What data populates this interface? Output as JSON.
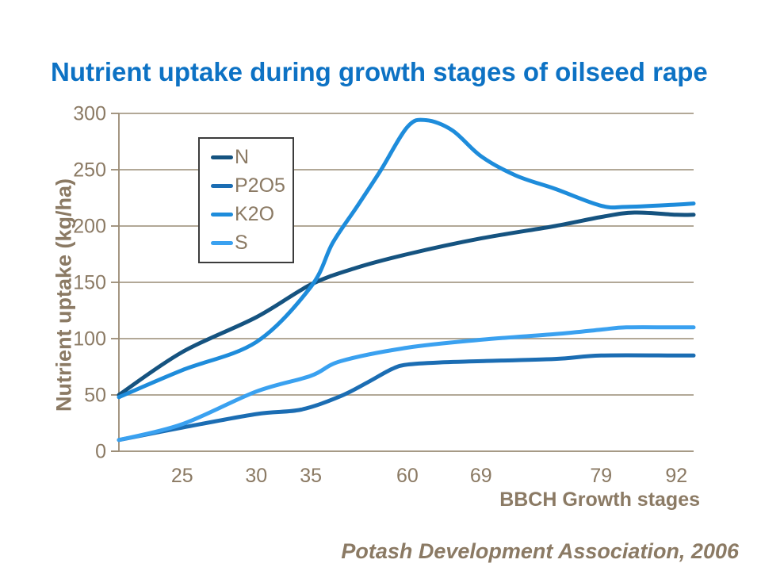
{
  "title": "Nutrient uptake during growth stages of oilseed rape",
  "footer": "Potash Development Association, 2006",
  "colors": {
    "title_blue": "#0D72C4",
    "axis_text": "#8B7A64",
    "grid": "#A79B88",
    "axis": "#9A8B74",
    "legend_border": "#3C3C3C",
    "background": "#FFFFFF"
  },
  "chart_data": {
    "type": "line",
    "title": "Nutrient uptake during growth stages of oilseed rape",
    "xlabel": "BBCH Growth stages",
    "ylabel": "Nutrient uptake (kg/ha)",
    "ylim": [
      0,
      300
    ],
    "y_ticks": [
      0,
      50,
      100,
      150,
      200,
      250,
      300
    ],
    "grid": "horizontal",
    "legend_position": "top-left-inside",
    "x_ticks": [
      {
        "label": "25",
        "fx": 0.11
      },
      {
        "label": "30",
        "fx": 0.239
      },
      {
        "label": "35",
        "fx": 0.334
      },
      {
        "label": "60",
        "fx": 0.502
      },
      {
        "label": "69",
        "fx": 0.63
      },
      {
        "label": "79",
        "fx": 0.839
      },
      {
        "label": "92",
        "fx": 0.97
      }
    ],
    "series": [
      {
        "name": "N",
        "color": "#155380",
        "stage_values": {
          "start": 50,
          "25": 88,
          "30": 119,
          "35": 148,
          "60": 175,
          "69": 189,
          "79": 209,
          "92": 210
        },
        "points": [
          [
            0,
            50
          ],
          [
            0.11,
            88
          ],
          [
            0.239,
            119
          ],
          [
            0.334,
            148
          ],
          [
            0.414,
            163
          ],
          [
            0.502,
            175
          ],
          [
            0.63,
            189
          ],
          [
            0.759,
            200
          ],
          [
            0.839,
            208
          ],
          [
            0.897,
            212
          ],
          [
            0.97,
            210
          ],
          [
            1,
            210
          ]
        ]
      },
      {
        "name": "P2O5",
        "color": "#1B6DB3",
        "stage_values": {
          "start": 10,
          "25": 21,
          "30": 33,
          "35": 38,
          "60": 77,
          "69": 80,
          "79": 85,
          "92": 85
        },
        "points": [
          [
            0,
            10
          ],
          [
            0.11,
            21
          ],
          [
            0.239,
            33
          ],
          [
            0.317,
            37
          ],
          [
            0.386,
            49
          ],
          [
            0.432,
            61
          ],
          [
            0.475,
            73
          ],
          [
            0.502,
            77
          ],
          [
            0.566,
            79
          ],
          [
            0.63,
            80
          ],
          [
            0.759,
            82
          ],
          [
            0.839,
            85
          ],
          [
            0.97,
            85
          ],
          [
            1,
            85
          ]
        ]
      },
      {
        "name": "K2O",
        "color": "#1E8CDB",
        "stage_values": {
          "start": 48,
          "25": 72,
          "30": 97,
          "35": 146,
          "60": 288,
          "peak": 294,
          "69": 262,
          "79": 218,
          "92": 219
        },
        "points": [
          [
            0,
            48
          ],
          [
            0.11,
            72
          ],
          [
            0.239,
            97
          ],
          [
            0.334,
            146
          ],
          [
            0.372,
            185
          ],
          [
            0.414,
            217
          ],
          [
            0.455,
            249
          ],
          [
            0.502,
            288
          ],
          [
            0.534,
            294
          ],
          [
            0.58,
            285
          ],
          [
            0.63,
            262
          ],
          [
            0.69,
            245
          ],
          [
            0.759,
            233
          ],
          [
            0.839,
            218
          ],
          [
            0.883,
            217
          ],
          [
            0.97,
            219
          ],
          [
            1,
            220
          ]
        ]
      },
      {
        "name": "S",
        "color": "#3AA1F0",
        "stage_values": {
          "start": 10,
          "25": 24,
          "30": 53,
          "35": 67,
          "60": 92,
          "69": 99,
          "79": 108,
          "92": 110
        },
        "points": [
          [
            0,
            10
          ],
          [
            0.11,
            24
          ],
          [
            0.239,
            53
          ],
          [
            0.334,
            67
          ],
          [
            0.386,
            80
          ],
          [
            0.502,
            92
          ],
          [
            0.63,
            99
          ],
          [
            0.759,
            104
          ],
          [
            0.839,
            108
          ],
          [
            0.883,
            110
          ],
          [
            0.97,
            110
          ],
          [
            1,
            110
          ]
        ]
      }
    ]
  }
}
